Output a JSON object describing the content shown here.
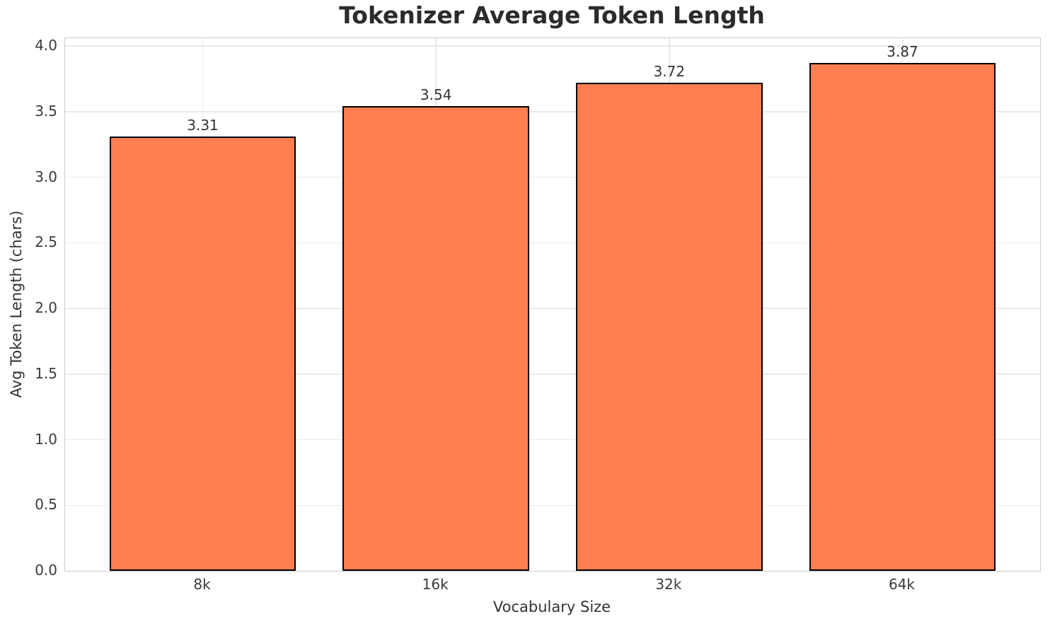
{
  "chart_data": {
    "type": "bar",
    "title": "Tokenizer Average Token Length",
    "xlabel": "Vocabulary Size",
    "ylabel": "Avg Token Length (chars)",
    "categories": [
      "8k",
      "16k",
      "32k",
      "64k"
    ],
    "values": [
      3.31,
      3.54,
      3.72,
      3.87
    ],
    "value_labels": [
      "3.31",
      "3.54",
      "3.72",
      "3.87"
    ],
    "yticks": [
      0.0,
      0.5,
      1.0,
      1.5,
      2.0,
      2.5,
      3.0,
      3.5,
      4.0
    ],
    "ytick_labels": [
      "0.0",
      "0.5",
      "1.0",
      "1.5",
      "2.0",
      "2.5",
      "3.0",
      "3.5",
      "4.0"
    ],
    "ylim": [
      0,
      4.06
    ],
    "grid": true,
    "legend": null,
    "bar_width_fraction": 0.8,
    "colors": {
      "bar_fill": "#FF7F50",
      "bar_edge": "#000000",
      "grid": "#e9e9e9",
      "spine": "#cbcbcb",
      "tick_text": "#3a3a3a",
      "label_text": "#333333",
      "title_text": "#2b2b2b",
      "background": "#ffffff"
    }
  }
}
